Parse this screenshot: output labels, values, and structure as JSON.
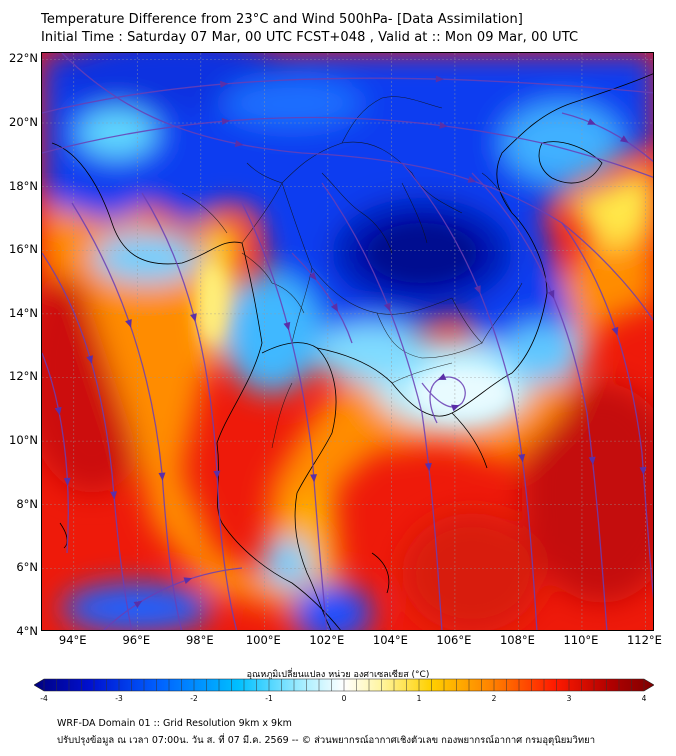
{
  "header": {
    "title_line1": "Temperature Difference from 23°C and Wind 500hPa- [Data Assimilation]",
    "title_line2": "Initial Time : Saturday 07 Mar, 00 UTC FCST+048 , Valid at ::  Mon 09 Mar, 00 UTC"
  },
  "map": {
    "lat_labels": [
      "22°N",
      "20°N",
      "18°N",
      "16°N",
      "14°N",
      "12°N",
      "10°N",
      "8°N",
      "6°N",
      "4°N"
    ],
    "lon_labels": [
      "94°E",
      "96°E",
      "98°E",
      "100°E",
      "102°E",
      "104°E",
      "106°E",
      "108°E",
      "110°E",
      "112°E"
    ],
    "extent": {
      "lon_min": 93,
      "lon_max": 112.3,
      "lat_min": 4,
      "lat_max": 22.2
    },
    "gridlines": true,
    "streamline_color": "#6a3fb5"
  },
  "colorbar": {
    "title": "อุณหภูมิเปลี่ยนแปลง หน่วย องศาเซลเซียส (°C)",
    "tick_labels": [
      "-4",
      "-3",
      "-2",
      "-1",
      "0",
      "1",
      "2",
      "3",
      "4"
    ],
    "range": [
      -4,
      4
    ],
    "colors": [
      "#00007f",
      "#0010d0",
      "#0060ff",
      "#00c0ff",
      "#b0f0ff",
      "#ffffff",
      "#fff5a0",
      "#ffd000",
      "#ff8000",
      "#ff1a00",
      "#b00000",
      "#7f0000"
    ]
  },
  "footer": {
    "line1": "WRF-DA Domain 01 :: Grid Resolution 9km x 9km",
    "line2": "ปรับปรุงข้อมูล ณ เวลา 07:00น. วัน ส. ที่ 07 มี.ค. 2569 -- © ส่วนพยากรณ์อากาศเชิงตัวเลข กองพยากรณ์อากาศ กรมอุตุนิยมวิทยา"
  }
}
